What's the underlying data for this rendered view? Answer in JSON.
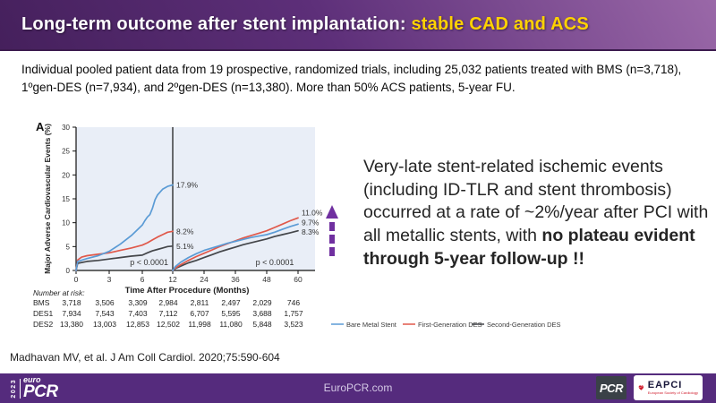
{
  "header": {
    "title_main": "Long-term outcome after stent implantation: ",
    "title_accent": "stable CAD and ACS",
    "accent_color": "#ffd200"
  },
  "intro": {
    "text": "Individual pooled patient data from 19 prospective, randomized trials, including 25,032 patients treated with BMS (n=3,718), 1ºgen-DES (n=7,934), and 2ºgen-DES (n=13,380). More than 50% ACS patients, 5-year FU."
  },
  "chart_data": {
    "type": "line",
    "panel_label": "A",
    "ylabel": "Major Adverse Cardiovascular Events (%)",
    "xlabel": "Time After Procedure (Months)",
    "ylim": [
      0,
      30
    ],
    "yticks": [
      0,
      5,
      10,
      15,
      20,
      25,
      30
    ],
    "xticks": [
      0,
      3,
      6,
      12,
      24,
      36,
      48,
      60
    ],
    "landmark_month": 12,
    "plot_bg": "#e9eef7",
    "grid": "off",
    "legend_position": "bottom-right",
    "p_values": {
      "left": "p < 0.0001",
      "right": "p < 0.0001"
    },
    "series": [
      {
        "name": "Bare Metal Stent",
        "color": "#5b9bd5",
        "segment1": [
          [
            0,
            0
          ],
          [
            0.15,
            1.9
          ],
          [
            1,
            2.5
          ],
          [
            2,
            3.1
          ],
          [
            3,
            4.0
          ],
          [
            4,
            5.5
          ],
          [
            5,
            7.3
          ],
          [
            6,
            9.5
          ],
          [
            6.5,
            10.4
          ],
          [
            7,
            11.2
          ],
          [
            7.5,
            11.7
          ],
          [
            8,
            13.0
          ],
          [
            8.5,
            14.8
          ],
          [
            9,
            15.8
          ],
          [
            10,
            17.0
          ],
          [
            11,
            17.6
          ],
          [
            12,
            17.9
          ]
        ],
        "segment1_end_label": "17.9%",
        "segment2": [
          [
            12,
            0
          ],
          [
            13,
            0.8
          ],
          [
            15,
            1.7
          ],
          [
            18,
            2.7
          ],
          [
            21,
            3.5
          ],
          [
            24,
            4.2
          ],
          [
            27,
            4.7
          ],
          [
            30,
            5.2
          ],
          [
            33,
            5.7
          ],
          [
            36,
            6.1
          ],
          [
            39,
            6.5
          ],
          [
            42,
            6.9
          ],
          [
            45,
            7.2
          ],
          [
            48,
            7.5
          ],
          [
            51,
            8.0
          ],
          [
            54,
            8.6
          ],
          [
            57,
            9.2
          ],
          [
            60,
            9.7
          ]
        ],
        "segment2_end_label": "9.7%"
      },
      {
        "name": "First-Generation DES",
        "color": "#e0584a",
        "segment1": [
          [
            0,
            0
          ],
          [
            0.15,
            2.2
          ],
          [
            0.5,
            2.8
          ],
          [
            1,
            3.1
          ],
          [
            2,
            3.4
          ],
          [
            3,
            3.7
          ],
          [
            4,
            4.2
          ],
          [
            5,
            4.7
          ],
          [
            6,
            5.3
          ],
          [
            7,
            5.8
          ],
          [
            8,
            6.4
          ],
          [
            9,
            7.0
          ],
          [
            10,
            7.5
          ],
          [
            11,
            8.0
          ],
          [
            12,
            8.2
          ]
        ],
        "segment1_end_label": "8.2%",
        "segment2": [
          [
            12,
            0
          ],
          [
            13,
            0.5
          ],
          [
            15,
            1.2
          ],
          [
            18,
            2.1
          ],
          [
            21,
            2.9
          ],
          [
            24,
            3.6
          ],
          [
            27,
            4.3
          ],
          [
            30,
            5.0
          ],
          [
            33,
            5.6
          ],
          [
            36,
            6.2
          ],
          [
            39,
            6.8
          ],
          [
            42,
            7.3
          ],
          [
            45,
            7.8
          ],
          [
            48,
            8.3
          ],
          [
            51,
            9.0
          ],
          [
            54,
            9.7
          ],
          [
            57,
            10.4
          ],
          [
            60,
            11.0
          ]
        ],
        "segment2_end_label": "11.0%"
      },
      {
        "name": "Second-Generation DES",
        "color": "#44464a",
        "segment1": [
          [
            0,
            0
          ],
          [
            0.15,
            1.5
          ],
          [
            1,
            1.9
          ],
          [
            2,
            2.1
          ],
          [
            3,
            2.4
          ],
          [
            4,
            2.7
          ],
          [
            5,
            3.0
          ],
          [
            6,
            3.2
          ],
          [
            7,
            3.7
          ],
          [
            8,
            4.1
          ],
          [
            9,
            4.4
          ],
          [
            10,
            4.7
          ],
          [
            11,
            5.0
          ],
          [
            12,
            5.1
          ]
        ],
        "segment1_end_label": "5.1%",
        "segment2": [
          [
            12,
            0
          ],
          [
            13,
            0.4
          ],
          [
            15,
            0.9
          ],
          [
            18,
            1.6
          ],
          [
            21,
            2.1
          ],
          [
            24,
            2.7
          ],
          [
            27,
            3.3
          ],
          [
            30,
            3.9
          ],
          [
            33,
            4.4
          ],
          [
            36,
            4.9
          ],
          [
            39,
            5.4
          ],
          [
            42,
            5.8
          ],
          [
            45,
            6.2
          ],
          [
            48,
            6.6
          ],
          [
            51,
            7.1
          ],
          [
            54,
            7.5
          ],
          [
            57,
            7.9
          ],
          [
            60,
            8.3
          ]
        ],
        "segment2_end_label": "8.3%"
      }
    ],
    "number_at_risk": {
      "title": "Number at risk:",
      "rows": [
        {
          "label": "BMS",
          "values": [
            "3,718",
            "3,506",
            "3,309",
            "2,984",
            "2,811",
            "2,497",
            "2,029",
            "746"
          ]
        },
        {
          "label": "DES1",
          "values": [
            "7,934",
            "7,543",
            "7,403",
            "7,112",
            "6,707",
            "5,595",
            "3,688",
            "1,757"
          ]
        },
        {
          "label": "DES2",
          "values": [
            "13,380",
            "13,003",
            "12,853",
            "12,502",
            "11,998",
            "11,080",
            "5,848",
            "3,523"
          ]
        }
      ]
    },
    "annotation_arrow": {
      "direction": "up",
      "color": "#7030a0"
    }
  },
  "callout": {
    "normal": "Very-late stent-related ischemic events (including ID-TLR and stent thrombosis) occurred at a rate of ~2%/year after PCI with all metallic stents, with ",
    "bold": "no plateau evident through 5-year follow-up !!"
  },
  "citation": {
    "text": "Madhavan MV, et al. J Am Coll Cardiol. 2020;75:590-604"
  },
  "footer": {
    "bg_color": "#552b7d",
    "year": "2023",
    "brand_top": "euro",
    "brand_main": "PCR",
    "website": "EuroPCR.com",
    "pcr_badge": "PCR",
    "eapci_name": "EAPCI",
    "eapci_sub": "European Society of Cardiology"
  }
}
